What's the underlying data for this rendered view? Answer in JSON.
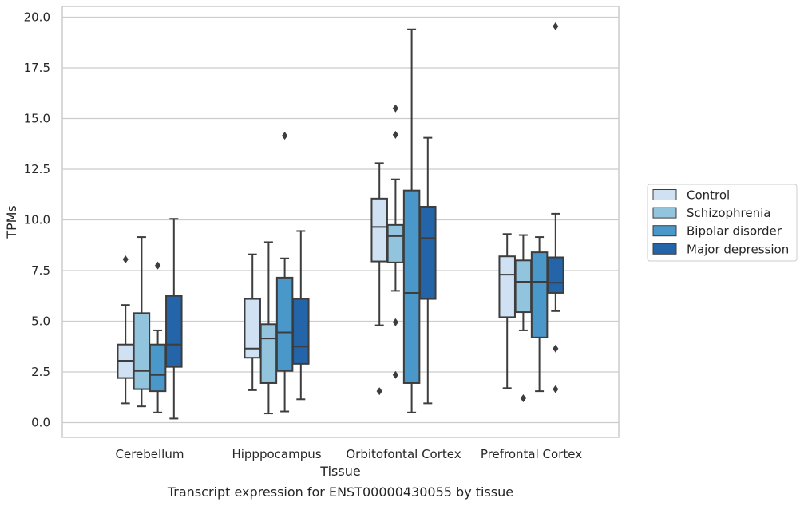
{
  "chart_data": {
    "type": "box",
    "title": "",
    "caption": "Transcript expression for ENST00000430055 by tissue",
    "xlabel": "Tissue",
    "ylabel": "TPMs",
    "ylim": [
      -0.65,
      20.5
    ],
    "yticks": [
      0.0,
      2.5,
      5.0,
      7.5,
      10.0,
      12.5,
      15.0,
      17.5,
      20.0
    ],
    "ytick_labels": [
      "0.0",
      "2.5",
      "5.0",
      "7.5",
      "10.0",
      "12.5",
      "15.0",
      "17.5",
      "20.0"
    ],
    "grid": "horizontal",
    "legend_position": "right",
    "categories": [
      "Cerebellum",
      "Hipppocampus",
      "Orbitofontal Cortex",
      "Prefrontal Cortex"
    ],
    "series": [
      {
        "name": "Control",
        "color": "#cfe1f2",
        "boxes": [
          {
            "whisker_low": 0.95,
            "q1": 2.2,
            "median": 3.05,
            "q3": 3.85,
            "whisker_high": 5.8,
            "outliers": [
              8.05
            ]
          },
          {
            "whisker_low": 1.6,
            "q1": 3.2,
            "median": 3.65,
            "q3": 6.1,
            "whisker_high": 8.3,
            "outliers": []
          },
          {
            "whisker_low": 4.8,
            "q1": 7.95,
            "median": 9.65,
            "q3": 11.05,
            "whisker_high": 12.8,
            "outliers": [
              1.55
            ]
          },
          {
            "whisker_low": 1.7,
            "q1": 5.2,
            "median": 7.3,
            "q3": 8.2,
            "whisker_high": 9.3,
            "outliers": []
          }
        ]
      },
      {
        "name": "Schizophrenia",
        "color": "#93c4de",
        "boxes": [
          {
            "whisker_low": 0.8,
            "q1": 1.65,
            "median": 2.55,
            "q3": 5.4,
            "whisker_high": 9.15,
            "outliers": []
          },
          {
            "whisker_low": 0.45,
            "q1": 1.95,
            "median": 4.15,
            "q3": 4.85,
            "whisker_high": 8.9,
            "outliers": []
          },
          {
            "whisker_low": 6.5,
            "q1": 7.9,
            "median": 9.2,
            "q3": 9.75,
            "whisker_high": 12.0,
            "outliers": [
              4.95,
              2.35,
              14.2,
              15.5
            ]
          },
          {
            "whisker_low": 4.55,
            "q1": 5.45,
            "median": 6.95,
            "q3": 8.0,
            "whisker_high": 9.25,
            "outliers": [
              1.2
            ]
          }
        ]
      },
      {
        "name": "Bipolar disorder",
        "color": "#4a98c9",
        "boxes": [
          {
            "whisker_low": 0.5,
            "q1": 1.55,
            "median": 2.35,
            "q3": 3.85,
            "whisker_high": 4.55,
            "outliers": [
              7.75
            ]
          },
          {
            "whisker_low": 0.55,
            "q1": 2.55,
            "median": 4.45,
            "q3": 7.15,
            "whisker_high": 8.1,
            "outliers": [
              14.15
            ]
          },
          {
            "whisker_low": 0.5,
            "q1": 1.95,
            "median": 6.4,
            "q3": 11.45,
            "whisker_high": 19.4,
            "outliers": []
          },
          {
            "whisker_low": 1.55,
            "q1": 4.2,
            "median": 6.95,
            "q3": 8.4,
            "whisker_high": 9.15,
            "outliers": []
          }
        ]
      },
      {
        "name": "Major depression",
        "color": "#2464a8",
        "boxes": [
          {
            "whisker_low": 0.2,
            "q1": 2.75,
            "median": 3.85,
            "q3": 6.25,
            "whisker_high": 10.05,
            "outliers": []
          },
          {
            "whisker_low": 1.15,
            "q1": 2.9,
            "median": 3.75,
            "q3": 6.1,
            "whisker_high": 9.45,
            "outliers": []
          },
          {
            "whisker_low": 0.95,
            "q1": 6.1,
            "median": 9.1,
            "q3": 10.65,
            "whisker_high": 14.05,
            "outliers": []
          },
          {
            "whisker_low": 5.5,
            "q1": 6.4,
            "median": 6.9,
            "q3": 8.15,
            "whisker_high": 10.3,
            "outliers": [
              3.65,
              1.65,
              19.55
            ]
          }
        ]
      }
    ]
  }
}
